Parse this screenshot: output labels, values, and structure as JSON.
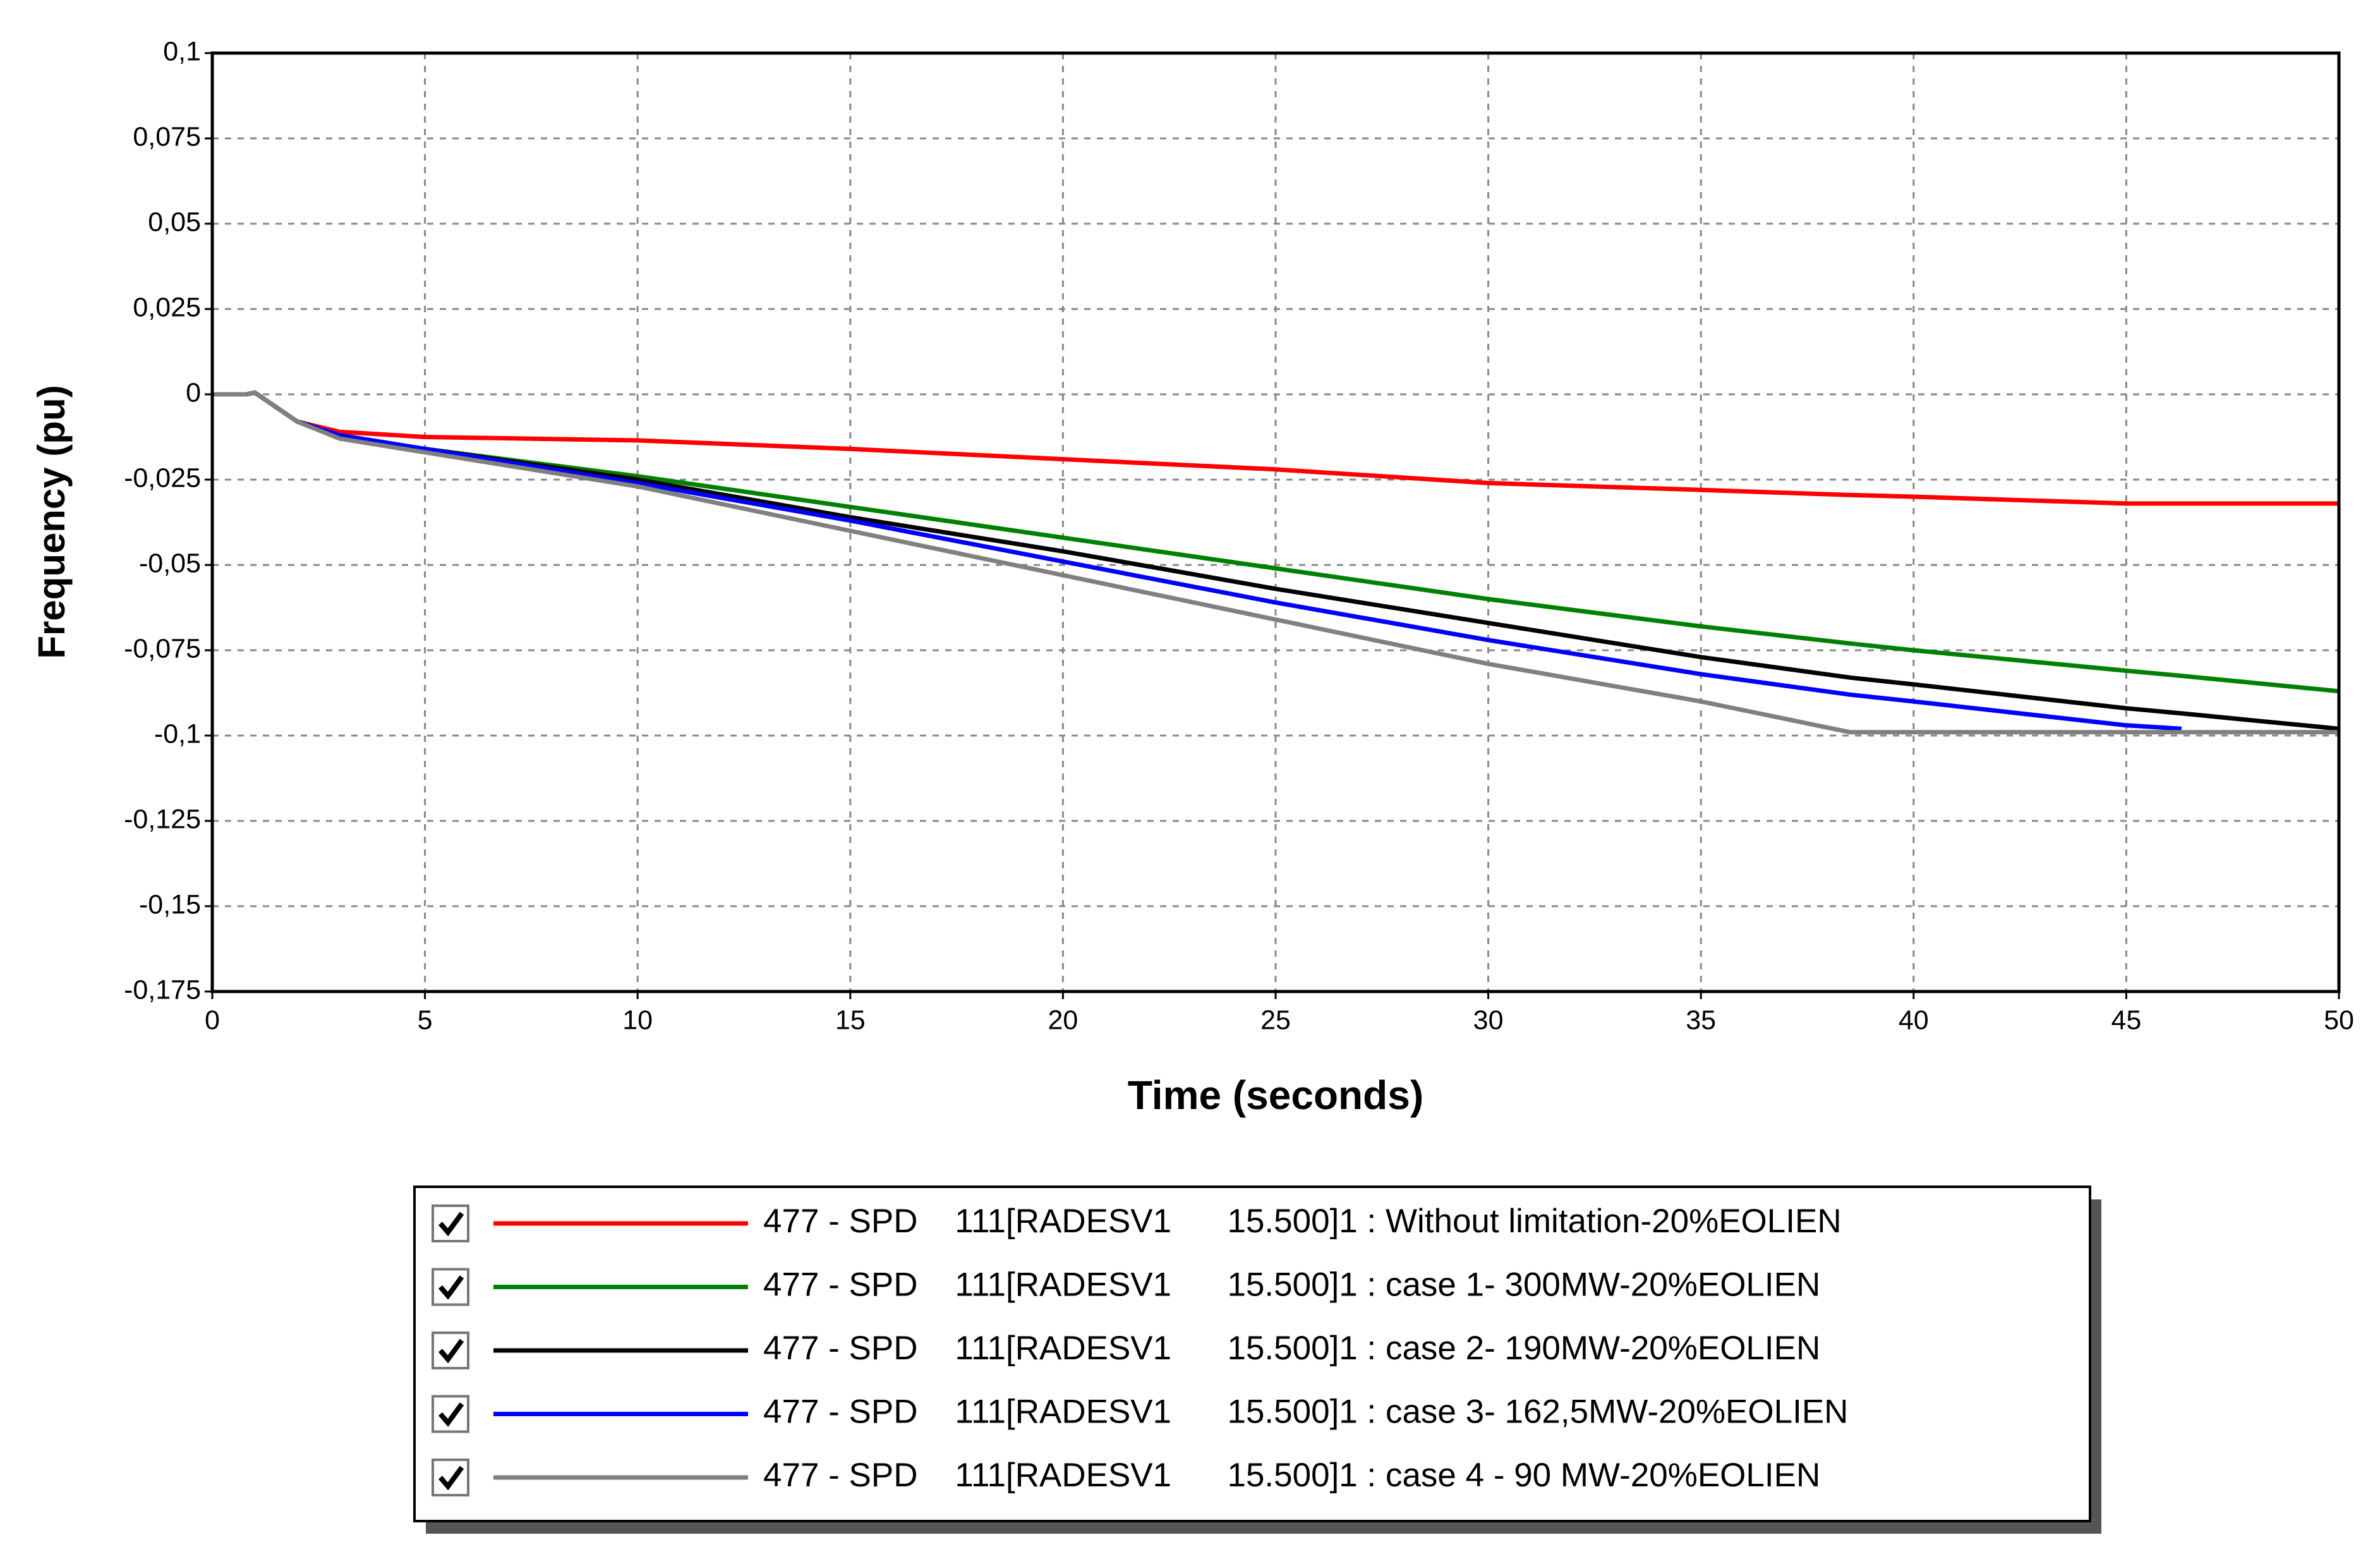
{
  "chart_data": {
    "type": "line",
    "xlabel": "Time (seconds)",
    "ylabel": "Frequency (pu)",
    "x": [
      0,
      0.8,
      1,
      2,
      3,
      5,
      10,
      15,
      20,
      25,
      30,
      35,
      38.5,
      40,
      45,
      46.3,
      50
    ],
    "series": [
      {
        "name": "477 - SPD    111[RADESV1      15.500]1 : Without limitation-20%EOLIEN",
        "color": "#ff0000",
        "values": [
          0,
          0,
          0.0005,
          -0.008,
          -0.011,
          -0.0125,
          -0.0135,
          -0.016,
          -0.019,
          -0.022,
          -0.026,
          -0.028,
          -0.0295,
          -0.03,
          -0.032,
          -0.032,
          -0.032
        ]
      },
      {
        "name": "477 - SPD    111[RADESV1      15.500]1 : case 1- 300MW-20%EOLIEN",
        "color": "#008000",
        "values": [
          0,
          0,
          0.0005,
          -0.008,
          -0.012,
          -0.016,
          -0.024,
          -0.033,
          -0.042,
          -0.051,
          -0.06,
          -0.068,
          -0.073,
          -0.075,
          -0.081,
          -0.0825,
          -0.087
        ]
      },
      {
        "name": "477 - SPD    111[RADESV1      15.500]1 : case 2- 190MW-20%EOLIEN",
        "color": "#000000",
        "values": [
          0,
          0,
          0.0005,
          -0.008,
          -0.012,
          -0.016,
          -0.025,
          -0.036,
          -0.046,
          -0.057,
          -0.067,
          -0.077,
          -0.083,
          -0.085,
          -0.092,
          -0.0935,
          -0.098
        ]
      },
      {
        "name": "477 - SPD    111[RADESV1      15.500]1 : case 3- 162,5MW-20%EOLIEN",
        "color": "#0000ff",
        "values": [
          0,
          0,
          0.0005,
          -0.008,
          -0.012,
          -0.016,
          -0.026,
          -0.037,
          -0.049,
          -0.061,
          -0.072,
          -0.082,
          -0.088,
          -0.09,
          -0.097,
          -0.098,
          null
        ]
      },
      {
        "name": "477 - SPD    111[RADESV1      15.500]1 : case 4 - 90 MW-20%EOLIEN",
        "color": "#808080",
        "values": [
          0,
          0,
          0.0005,
          -0.008,
          -0.013,
          -0.017,
          -0.027,
          -0.04,
          -0.053,
          -0.066,
          -0.079,
          -0.09,
          -0.099,
          -0.099,
          -0.099,
          -0.099,
          -0.099
        ]
      }
    ],
    "xlim": [
      0,
      50
    ],
    "xticks": [
      0,
      5,
      10,
      15,
      20,
      25,
      30,
      35,
      40,
      45,
      50
    ],
    "ylim": [
      -0.175,
      0.1
    ],
    "yticks": [
      {
        "value": -0.175,
        "label": "-0,175"
      },
      {
        "value": -0.15,
        "label": "-0,15"
      },
      {
        "value": -0.125,
        "label": "-0,125"
      },
      {
        "value": -0.1,
        "label": "-0,1"
      },
      {
        "value": -0.075,
        "label": "-0,075"
      },
      {
        "value": -0.05,
        "label": "-0,05"
      },
      {
        "value": -0.025,
        "label": "-0,025"
      },
      0,
      {
        "value": 0.025,
        "label": "0,025"
      },
      {
        "value": 0.05,
        "label": "0,05"
      },
      {
        "value": 0.075,
        "label": "0,075"
      },
      {
        "value": 0.1,
        "label": "0,1"
      }
    ],
    "grid": true,
    "legend": "bottom"
  }
}
